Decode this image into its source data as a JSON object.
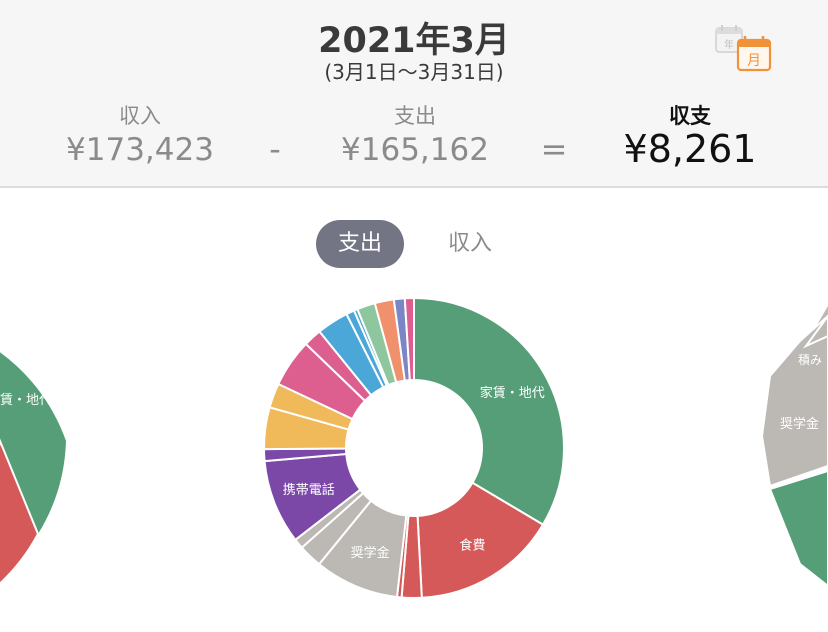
{
  "header": {
    "month_title": "2021年3月",
    "date_range": "(3月1日〜3月31日)",
    "calendar_icons": [
      "year-calendar-icon",
      "month-calendar-icon"
    ],
    "year_icon_text": "年",
    "month_icon_text": "月"
  },
  "summary": {
    "income_label": "収入",
    "income_value": "¥173,423",
    "minus": "-",
    "expense_label": "支出",
    "expense_value": "¥165,162",
    "equals": "=",
    "balance_label": "収支",
    "balance_value": "¥8,261"
  },
  "tabs": {
    "expense": "支出",
    "income": "収入",
    "selected": "支出"
  },
  "colors": {
    "header_bg": "#f6f6f6",
    "active_tab": "#737585",
    "calendar_accent": "#f0923a"
  },
  "chart_data": {
    "type": "pie",
    "donut": true,
    "categories": [
      "家賃・地代",
      "食費",
      "",
      "",
      "奨学金",
      "",
      "",
      "携帯電話",
      "",
      "",
      "",
      "",
      "",
      "",
      "",
      "",
      "",
      "",
      "",
      ""
    ],
    "values": [
      34.3,
      16.0,
      2.2,
      0.5,
      9.3,
      2.6,
      1.1,
      9.3,
      1.3,
      4.6,
      2.7,
      5.3,
      2.0,
      3.5,
      0.9,
      0.4,
      2.0,
      2.1,
      1.2,
      1.0
    ],
    "colors": [
      "#559e78",
      "#d65959",
      "#d65959",
      "#d65959",
      "#bcb8b4",
      "#bcb8b4",
      "#bcb8b4",
      "#7b48a8",
      "#7b48a8",
      "#f0b95a",
      "#f0b95a",
      "#dc5f8f",
      "#dc5f8f",
      "#4ca7d9",
      "#4ca7d9",
      "#4ca7d9",
      "#8ec69d",
      "#f0906c",
      "#7b86c7",
      "#dc5f8f"
    ],
    "labels_shown": [
      "家賃・地代",
      "食費",
      "奨学金",
      "携帯電話"
    ],
    "side_chart_left_labels": [
      "賃・地代"
    ],
    "side_chart_right_labels": [
      "積み",
      "奨学金"
    ]
  }
}
